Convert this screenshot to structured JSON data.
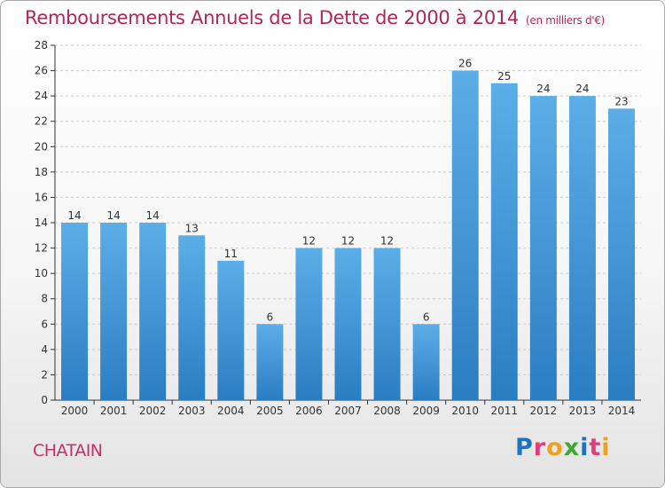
{
  "header": {
    "title": "Remboursements Annuels de la Dette de 2000 à 2014",
    "subtitle": "(en milliers d'€)"
  },
  "footer": {
    "commune": "CHATAIN",
    "logo_letters": [
      "P",
      "r",
      "o",
      "x",
      "i",
      "t",
      "i"
    ],
    "logo_colors": [
      "#1e73be",
      "#e63b7a",
      "#f0a020",
      "#3aaa35",
      "#1e73be",
      "#e63b7a",
      "#f0a020"
    ]
  },
  "colors": {
    "bar_light": "#5caee8",
    "bar_dark": "#2b7dc2",
    "grid": "#cccccc",
    "axis": "#333333"
  },
  "chart_data": {
    "type": "bar",
    "title": "Remboursements Annuels de la Dette de 2000 à 2014",
    "subtitle": "(en milliers d'€)",
    "xlabel": "",
    "ylabel": "",
    "categories": [
      "2000",
      "2001",
      "2002",
      "2003",
      "2004",
      "2005",
      "2006",
      "2007",
      "2008",
      "2009",
      "2010",
      "2011",
      "2012",
      "2013",
      "2014"
    ],
    "values": [
      14,
      14,
      14,
      13,
      11,
      6,
      12,
      12,
      12,
      6,
      26,
      25,
      24,
      24,
      23
    ],
    "ylim": [
      0,
      28
    ],
    "yticks": [
      0,
      2,
      4,
      6,
      8,
      10,
      12,
      14,
      16,
      18,
      20,
      22,
      24,
      26,
      28
    ],
    "grid": true
  }
}
